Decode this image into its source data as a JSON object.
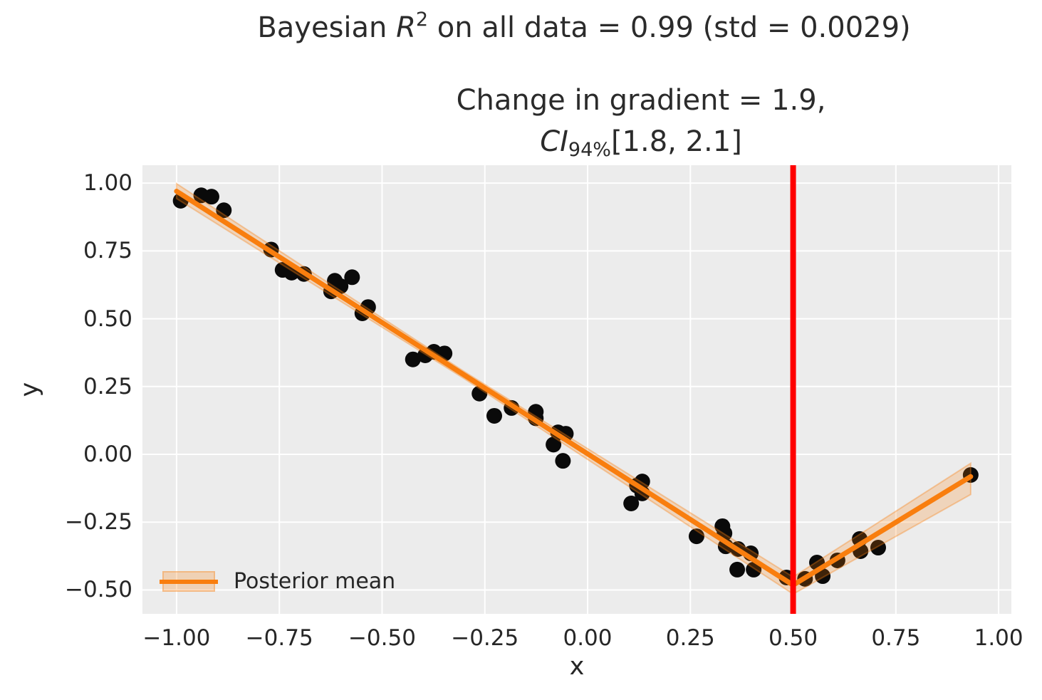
{
  "figure": {
    "title": {
      "part1": "Bayesian ",
      "math_var": "R",
      "superscript": "2",
      "part2": " on all data = 0.99 (std = 0.0029)"
    },
    "subtitle": {
      "line1": "Change in gradient = 1.9,",
      "ci_label": "CI",
      "ci_sub": "94%",
      "ci_interval": "[1.8, 2.1]"
    }
  },
  "axes": {
    "xlabel": "x",
    "ylabel": "y",
    "xticks": {
      "values": [
        -1.0,
        -0.75,
        -0.5,
        -0.25,
        0.0,
        0.25,
        0.5,
        0.75,
        1.0
      ],
      "labels": [
        "−1.00",
        "−0.75",
        "−0.50",
        "−0.25",
        "0.00",
        "0.25",
        "0.50",
        "0.75",
        "1.00"
      ]
    },
    "yticks": {
      "values": [
        1.0,
        0.75,
        0.5,
        0.25,
        0.0,
        -0.25,
        -0.5
      ],
      "labels": [
        "1.00",
        "0.75",
        "0.50",
        "0.25",
        "0.00",
        "−0.25",
        "−0.50"
      ]
    }
  },
  "legend": {
    "label": "Posterior mean"
  },
  "colors": {
    "plot_bg": "#ececec",
    "grid": "#ffffff",
    "scatter": "#0a0a0a",
    "line": "#f97e0e",
    "band_fill_opacity": 0.22,
    "changepoint_line": "#ff0000",
    "text": "#262626"
  },
  "chart_data": {
    "type": "scatter",
    "title": "Bayesian R^2 on all data = 0.99 (std = 0.0029)",
    "subtitle": "Change in gradient = 1.9, CI_94% [1.8, 2.1]",
    "xlabel": "x",
    "ylabel": "y",
    "xlim": [
      -1.083,
      1.031
    ],
    "ylim": [
      -0.588,
      1.066
    ],
    "grid": true,
    "legend_position": "lower left",
    "legend_entries": [
      "Posterior mean"
    ],
    "changepoint_x": 0.5,
    "scatter": [
      [
        -0.99,
        0.935
      ],
      [
        -0.94,
        0.955
      ],
      [
        -0.915,
        0.95
      ],
      [
        -0.885,
        0.9
      ],
      [
        -0.77,
        0.755
      ],
      [
        -0.742,
        0.68
      ],
      [
        -0.72,
        0.67
      ],
      [
        -0.69,
        0.665
      ],
      [
        -0.624,
        0.601
      ],
      [
        -0.615,
        0.64
      ],
      [
        -0.601,
        0.62
      ],
      [
        -0.573,
        0.653
      ],
      [
        -0.548,
        0.52
      ],
      [
        -0.534,
        0.543
      ],
      [
        -0.425,
        0.35
      ],
      [
        -0.395,
        0.365
      ],
      [
        -0.374,
        0.378
      ],
      [
        -0.348,
        0.372
      ],
      [
        -0.263,
        0.224
      ],
      [
        -0.227,
        0.142
      ],
      [
        -0.185,
        0.171
      ],
      [
        -0.126,
        0.157
      ],
      [
        -0.126,
        0.133
      ],
      [
        -0.072,
        0.081
      ],
      [
        -0.053,
        0.076
      ],
      [
        -0.083,
        0.036
      ],
      [
        -0.06,
        -0.024
      ],
      [
        0.12,
        -0.115
      ],
      [
        0.133,
        -0.1
      ],
      [
        0.133,
        -0.144
      ],
      [
        0.106,
        -0.181
      ],
      [
        0.265,
        -0.302
      ],
      [
        0.328,
        -0.265
      ],
      [
        0.333,
        -0.291
      ],
      [
        0.336,
        -0.339
      ],
      [
        0.366,
        -0.349
      ],
      [
        0.364,
        -0.425
      ],
      [
        0.397,
        -0.365
      ],
      [
        0.404,
        -0.425
      ],
      [
        0.484,
        -0.454
      ],
      [
        0.529,
        -0.459
      ],
      [
        0.558,
        -0.399
      ],
      [
        0.572,
        -0.449
      ],
      [
        0.608,
        -0.391
      ],
      [
        0.662,
        -0.312
      ],
      [
        0.664,
        -0.357
      ],
      [
        0.707,
        -0.344
      ],
      [
        0.932,
        -0.076
      ]
    ],
    "posterior_mean_line": [
      [
        -1.0,
        0.97
      ],
      [
        0.5,
        -0.482
      ],
      [
        0.932,
        -0.082
      ]
    ],
    "credible_band": [
      [
        -1.0,
        0.943,
        0.998
      ],
      [
        -0.3,
        0.279,
        0.305
      ],
      [
        0.5,
        -0.515,
        -0.452
      ],
      [
        0.932,
        -0.148,
        -0.033
      ]
    ]
  }
}
